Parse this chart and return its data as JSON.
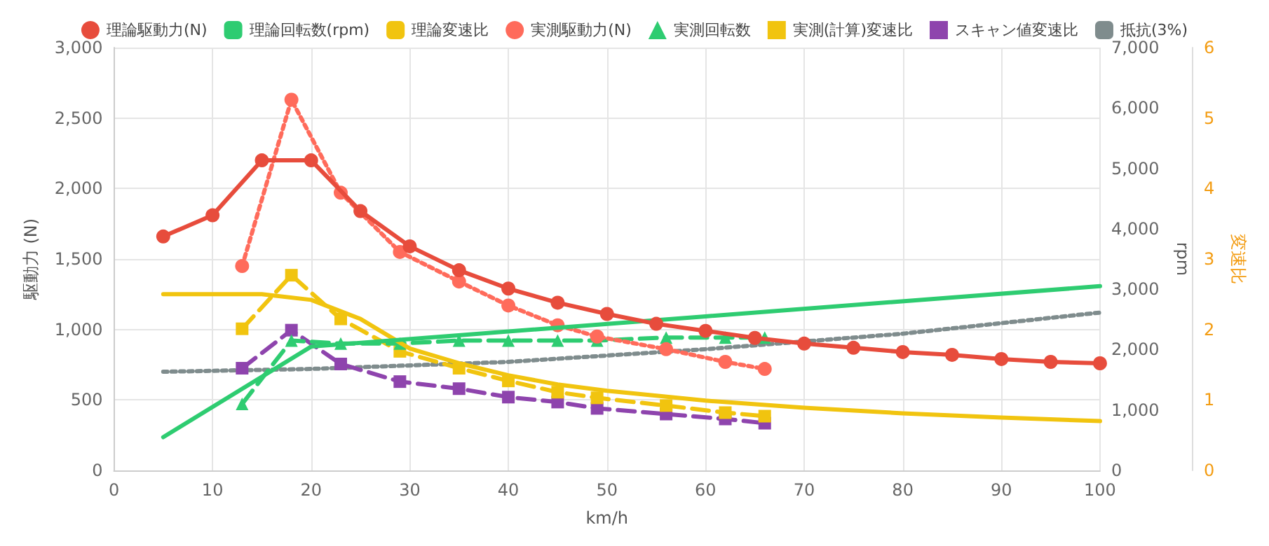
{
  "chart_data": {
    "type": "line",
    "xlabel": "km/h",
    "ylabel": "駆動力 (N)",
    "y2label": "rpm",
    "y3label": "変速比",
    "xlim": [
      0,
      100
    ],
    "xticks": [
      0,
      10,
      20,
      30,
      40,
      50,
      60,
      70,
      80,
      90,
      100
    ],
    "ylim": [
      0,
      3000
    ],
    "yticks": [
      0,
      {
        "value": 500,
        "label": "500"
      },
      {
        "value": 1000,
        "label": "1,000"
      },
      {
        "value": 1500,
        "label": "1,500"
      },
      {
        "value": 2000,
        "label": "2,000"
      },
      {
        "value": 2500,
        "label": "2,500"
      },
      {
        "value": 3000,
        "label": "3,000"
      }
    ],
    "y2lim": [
      0,
      7000
    ],
    "y2ticks": [
      0,
      {
        "value": 1000,
        "label": "1,000"
      },
      {
        "value": 2000,
        "label": "2,000"
      },
      {
        "value": 3000,
        "label": "3,000"
      },
      {
        "value": 4000,
        "label": "4,000"
      },
      {
        "value": 5000,
        "label": "5,000"
      },
      {
        "value": 6000,
        "label": "6,000"
      },
      {
        "value": 7000,
        "label": "7,000"
      }
    ],
    "y3lim": [
      0,
      6
    ],
    "y3ticks": [
      0,
      1,
      2,
      3,
      4,
      5,
      6
    ],
    "grid": true,
    "legend": "top",
    "series": [
      {
        "name": "理論駆動力(N)",
        "color": "#e74c3c",
        "marker": "circle",
        "line_style": "solid",
        "x": [
          5,
          10,
          15,
          20,
          25,
          30,
          35,
          40,
          45,
          50,
          55,
          60,
          65,
          70,
          75,
          80,
          85,
          90,
          95,
          100
        ],
        "values": [
          1660,
          1810,
          2200,
          2200,
          1840,
          1590,
          1420,
          1290,
          1190,
          1110,
          1040,
          990,
          940,
          900,
          870,
          840,
          820,
          790,
          770,
          760
        ]
      },
      {
        "name": "理論回転数(rpm)",
        "color": "#2ecc71",
        "marker": "none",
        "line_style": "solid",
        "axis": "y2",
        "x": [
          5,
          20,
          60,
          100
        ],
        "values": [
          550,
          2050,
          2550,
          3050
        ]
      },
      {
        "name": "理論変速比",
        "color": "#f1c40f",
        "marker": "none",
        "line_style": "solid",
        "axis": "y3",
        "x": [
          5,
          15,
          20,
          25,
          30,
          35,
          40,
          45,
          50,
          60,
          70,
          80,
          90,
          100
        ],
        "values": [
          2.5,
          2.5,
          2.42,
          2.15,
          1.73,
          1.52,
          1.35,
          1.22,
          1.13,
          0.99,
          0.89,
          0.81,
          0.75,
          0.7
        ]
      },
      {
        "name": "実測駆動力(N)",
        "color": "#ff6b5b",
        "marker": "circle",
        "line_style": "dotted",
        "x": [
          13,
          18,
          23,
          29,
          35,
          40,
          45,
          49,
          56,
          62,
          66
        ],
        "values": [
          1450,
          2630,
          1970,
          1550,
          1340,
          1170,
          1030,
          950,
          860,
          770,
          720
        ]
      },
      {
        "name": "実測回転数",
        "color": "#2ecc71",
        "marker": "triangle",
        "line_style": "dashed",
        "axis": "y2",
        "x": [
          13,
          18,
          23,
          29,
          35,
          40,
          45,
          49,
          56,
          62,
          66
        ],
        "values": [
          1100,
          2150,
          2100,
          2100,
          2150,
          2150,
          2150,
          2150,
          2200,
          2200,
          2200
        ]
      },
      {
        "name": "実測(計算)変速比",
        "color": "#f1c40f",
        "marker": "square",
        "line_style": "dashed",
        "axis": "y3",
        "x": [
          13,
          18,
          23,
          29,
          35,
          40,
          45,
          49,
          56,
          62,
          66
        ],
        "values": [
          2.01,
          2.77,
          2.15,
          1.69,
          1.45,
          1.27,
          1.11,
          1.03,
          0.92,
          0.82,
          0.77
        ]
      },
      {
        "name": "スキャン値変速比",
        "color": "#8e44ad",
        "marker": "square",
        "line_style": "dashed",
        "axis": "y3",
        "x": [
          13,
          18,
          23,
          29,
          35,
          40,
          45,
          49,
          56,
          62,
          66
        ],
        "values": [
          1.45,
          1.99,
          1.51,
          1.26,
          1.16,
          1.04,
          0.97,
          0.88,
          0.8,
          0.73,
          0.67
        ]
      },
      {
        "name": "抵抗(3%)",
        "color": "#7f8c8d",
        "marker": "none",
        "line_style": "dotted",
        "x": [
          5,
          20,
          40,
          60,
          80,
          100
        ],
        "values": [
          700,
          720,
          770,
          860,
          970,
          1120
        ]
      }
    ]
  }
}
